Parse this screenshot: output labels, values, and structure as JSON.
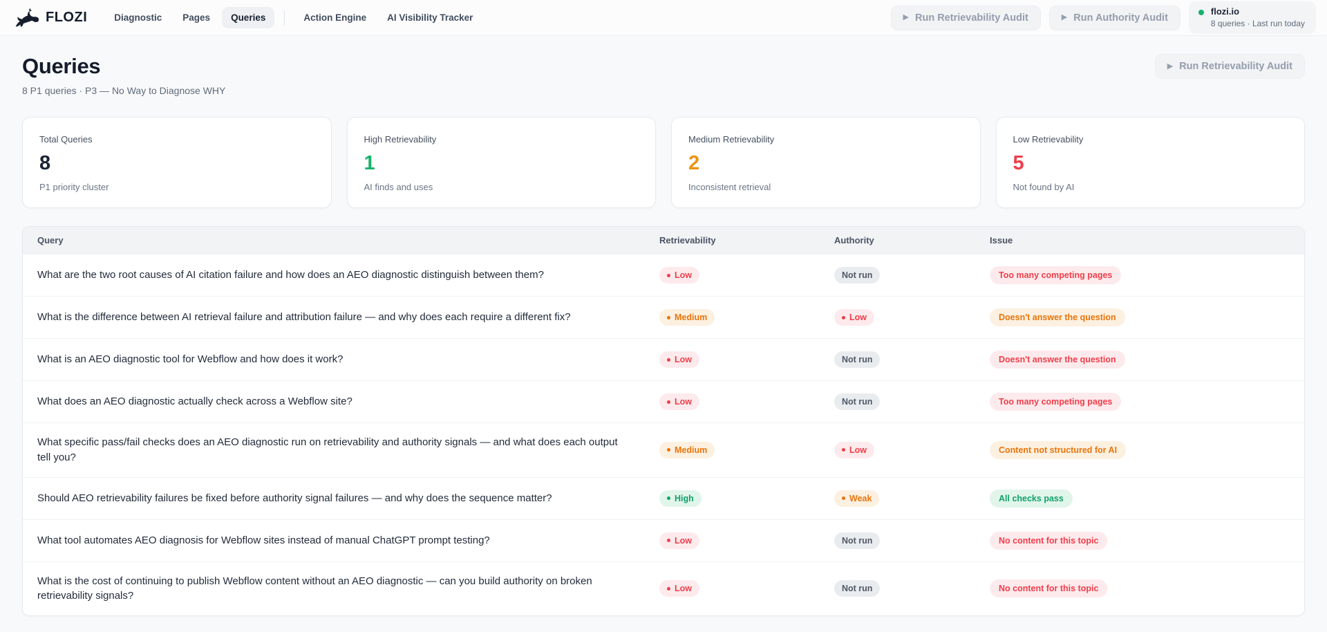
{
  "icons": {
    "play": "▶"
  },
  "brand": {
    "name": "FLOZI"
  },
  "nav": {
    "items": [
      {
        "label": "Diagnostic",
        "active": false
      },
      {
        "label": "Pages",
        "active": false
      },
      {
        "label": "Queries",
        "active": true
      },
      {
        "label": "Action Engine",
        "active": false,
        "divider_before": true
      },
      {
        "label": "AI Visibility Tracker",
        "active": false
      }
    ]
  },
  "topbar": {
    "run_retrievability_label": "Run Retrievability Audit",
    "run_authority_label": "Run Authority Audit",
    "site": {
      "domain": "flozi.io",
      "meta": "8 queries · Last run today",
      "status_color": "#17b26a"
    }
  },
  "page": {
    "title": "Queries",
    "subtitle": "8 P1 queries · P3 — No Way to Diagnose WHY",
    "action_label": "Run Retrievability Audit"
  },
  "stats": [
    {
      "label": "Total Queries",
      "value": "8",
      "caption": "P1 priority cluster",
      "tone": "dark",
      "color": "#1b2433"
    },
    {
      "label": "High Retrievability",
      "value": "1",
      "caption": "AI finds and uses",
      "tone": "green",
      "color": "#17b26a"
    },
    {
      "label": "Medium Retrievability",
      "value": "2",
      "caption": "Inconsistent retrieval",
      "tone": "orange",
      "color": "#f0920f"
    },
    {
      "label": "Low Retrievability",
      "value": "5",
      "caption": "Not found by AI",
      "tone": "red",
      "color": "#ee3f4a"
    }
  ],
  "table": {
    "columns": [
      "Query",
      "Retrievability",
      "Authority",
      "Issue"
    ],
    "rows": [
      {
        "query": "What are the two root causes of AI citation failure and how does an AEO diagnostic distinguish between them?",
        "retrievability": {
          "label": "Low",
          "variant": "red"
        },
        "authority": {
          "label": "Not run",
          "variant": "gray"
        },
        "issue": {
          "label": "Too many competing pages",
          "variant": "red"
        }
      },
      {
        "query": "What is the difference between AI retrieval failure and attribution failure — and why does each require a different fix?",
        "retrievability": {
          "label": "Medium",
          "variant": "orange"
        },
        "authority": {
          "label": "Low",
          "variant": "red"
        },
        "issue": {
          "label": "Doesn't answer the question",
          "variant": "orange"
        }
      },
      {
        "query": "What is an AEO diagnostic tool for Webflow and how does it work?",
        "retrievability": {
          "label": "Low",
          "variant": "red"
        },
        "authority": {
          "label": "Not run",
          "variant": "gray"
        },
        "issue": {
          "label": "Doesn't answer the question",
          "variant": "red"
        }
      },
      {
        "query": "What does an AEO diagnostic actually check across a Webflow site?",
        "retrievability": {
          "label": "Low",
          "variant": "red"
        },
        "authority": {
          "label": "Not run",
          "variant": "gray"
        },
        "issue": {
          "label": "Too many competing pages",
          "variant": "red"
        }
      },
      {
        "query": "What specific pass/fail checks does an AEO diagnostic run on retrievability and authority signals — and what does each output tell you?",
        "retrievability": {
          "label": "Medium",
          "variant": "orange"
        },
        "authority": {
          "label": "Low",
          "variant": "red"
        },
        "issue": {
          "label": "Content not structured for AI",
          "variant": "orange"
        }
      },
      {
        "query": "Should AEO retrievability failures be fixed before authority signal failures — and why does the sequence matter?",
        "retrievability": {
          "label": "High",
          "variant": "green"
        },
        "authority": {
          "label": "Weak",
          "variant": "orange"
        },
        "issue": {
          "label": "All checks pass",
          "variant": "green"
        }
      },
      {
        "query": "What tool automates AEO diagnosis for Webflow sites instead of manual ChatGPT prompt testing?",
        "retrievability": {
          "label": "Low",
          "variant": "red"
        },
        "authority": {
          "label": "Not run",
          "variant": "gray"
        },
        "issue": {
          "label": "No content for this topic",
          "variant": "red"
        }
      },
      {
        "query": "What is the cost of continuing to publish Webflow content without an AEO diagnostic — can you build authority on broken retrievability signals?",
        "retrievability": {
          "label": "Low",
          "variant": "red"
        },
        "authority": {
          "label": "Not run",
          "variant": "gray"
        },
        "issue": {
          "label": "No content for this topic",
          "variant": "red"
        }
      }
    ]
  }
}
